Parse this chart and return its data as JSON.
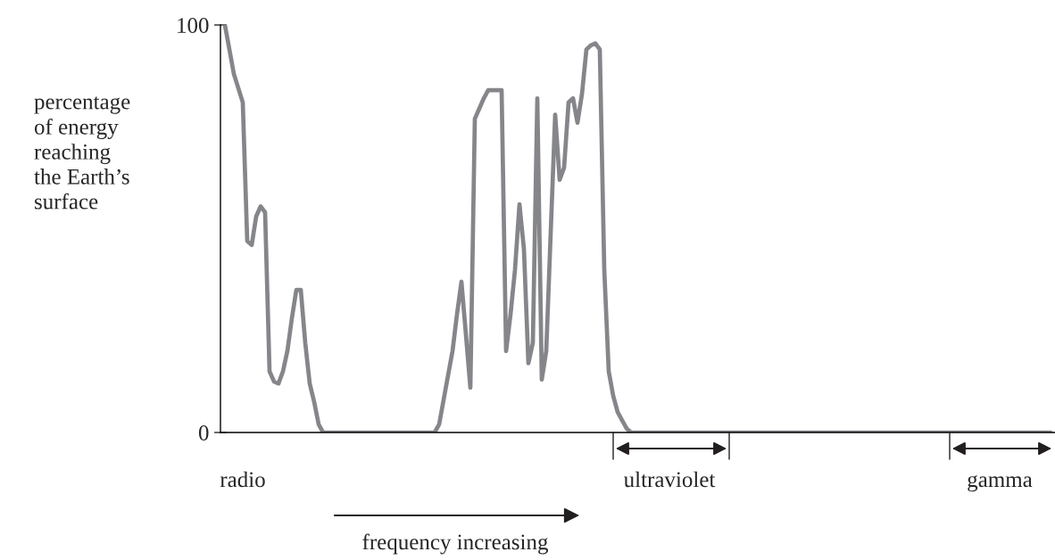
{
  "chart_data": {
    "type": "line",
    "ylabel": "percentage\nof energy\nreaching\nthe Earth’s\nsurface",
    "categories": [
      null,
      null,
      null,
      null,
      null,
      null,
      null,
      null,
      null,
      null,
      null,
      null,
      null,
      null,
      null,
      null,
      null,
      null,
      null,
      null,
      null,
      null,
      null,
      null,
      null,
      null,
      null,
      null,
      null,
      null,
      null,
      null,
      null,
      null,
      null,
      null,
      null,
      null,
      null,
      null,
      null,
      null,
      null,
      null,
      null,
      null,
      null,
      null,
      null,
      null,
      null,
      null,
      null,
      null,
      null,
      null,
      null,
      null,
      null,
      null,
      null,
      null,
      null,
      null,
      null,
      null,
      null,
      null,
      null,
      null,
      null,
      null,
      null,
      null,
      null,
      null,
      null,
      null,
      null,
      null,
      null,
      null,
      null,
      null,
      null,
      null,
      null,
      null,
      null,
      null,
      null,
      null,
      null,
      null,
      null,
      null,
      null,
      null,
      null,
      null,
      null,
      null,
      null,
      null,
      null,
      null,
      null,
      null,
      null,
      null,
      null,
      null,
      null,
      null,
      null,
      null,
      null,
      null,
      null,
      null,
      null,
      null,
      null,
      null,
      null,
      null,
      null,
      null,
      null,
      null,
      null,
      null,
      null,
      null,
      null,
      null,
      null,
      null,
      null,
      null,
      null,
      null,
      null,
      null,
      null,
      null,
      null,
      null,
      null,
      null,
      null,
      null,
      null,
      null,
      null,
      null,
      null,
      null,
      null,
      null,
      null,
      null,
      null,
      null,
      null,
      null,
      null,
      null,
      null,
      null,
      null,
      null,
      null,
      null,
      null,
      null,
      null,
      null,
      null,
      null,
      null,
      null,
      null,
      null,
      null,
      null
    ],
    "series": [
      {
        "color": "#85868a",
        "values": [
          100,
          94,
          88,
          84.5,
          81,
          47,
          46,
          53,
          55.5,
          54,
          15,
          12.5,
          12,
          15,
          20,
          28,
          35,
          35,
          22,
          12,
          7.5,
          2,
          0,
          0,
          0,
          0,
          0,
          0,
          0,
          0,
          0,
          0,
          0,
          0,
          0,
          0,
          0,
          0,
          0,
          0,
          0,
          0,
          0,
          0,
          0,
          0,
          0,
          0,
          2,
          8,
          14,
          20,
          29,
          37,
          24,
          11,
          77,
          79.5,
          82,
          84,
          84,
          84,
          84,
          20,
          29,
          40,
          56,
          45,
          17,
          22,
          82,
          13,
          20,
          49,
          78,
          62,
          65,
          81,
          82,
          76,
          83,
          94,
          95,
          95.5,
          94,
          40,
          15,
          9,
          5,
          3,
          1,
          0,
          0,
          0,
          0,
          0,
          0,
          0,
          0,
          0,
          0,
          0,
          0,
          0,
          0,
          0,
          0,
          0,
          0,
          0,
          0,
          0,
          0,
          0,
          0,
          0,
          0,
          0,
          0,
          0,
          0,
          0,
          0,
          0,
          0,
          0,
          0,
          0,
          0,
          0,
          0,
          0,
          0,
          0,
          0,
          0,
          0,
          0,
          0,
          0,
          0,
          0,
          0,
          0,
          0,
          0,
          0,
          0,
          0,
          0,
          0,
          0,
          0,
          0,
          0,
          0,
          0,
          0,
          0,
          0,
          0,
          0,
          0,
          0,
          0,
          0,
          0,
          0,
          0,
          0,
          0,
          0,
          0,
          0,
          0,
          0,
          0,
          0,
          0,
          0,
          0,
          0,
          0,
          0,
          0,
          0
        ]
      }
    ],
    "ylim": [
      0,
      100
    ],
    "yticks": [
      0,
      100
    ],
    "grid": false,
    "annotations": [
      "radio",
      "ultraviolet",
      "gamma",
      "frequency increasing"
    ]
  }
}
